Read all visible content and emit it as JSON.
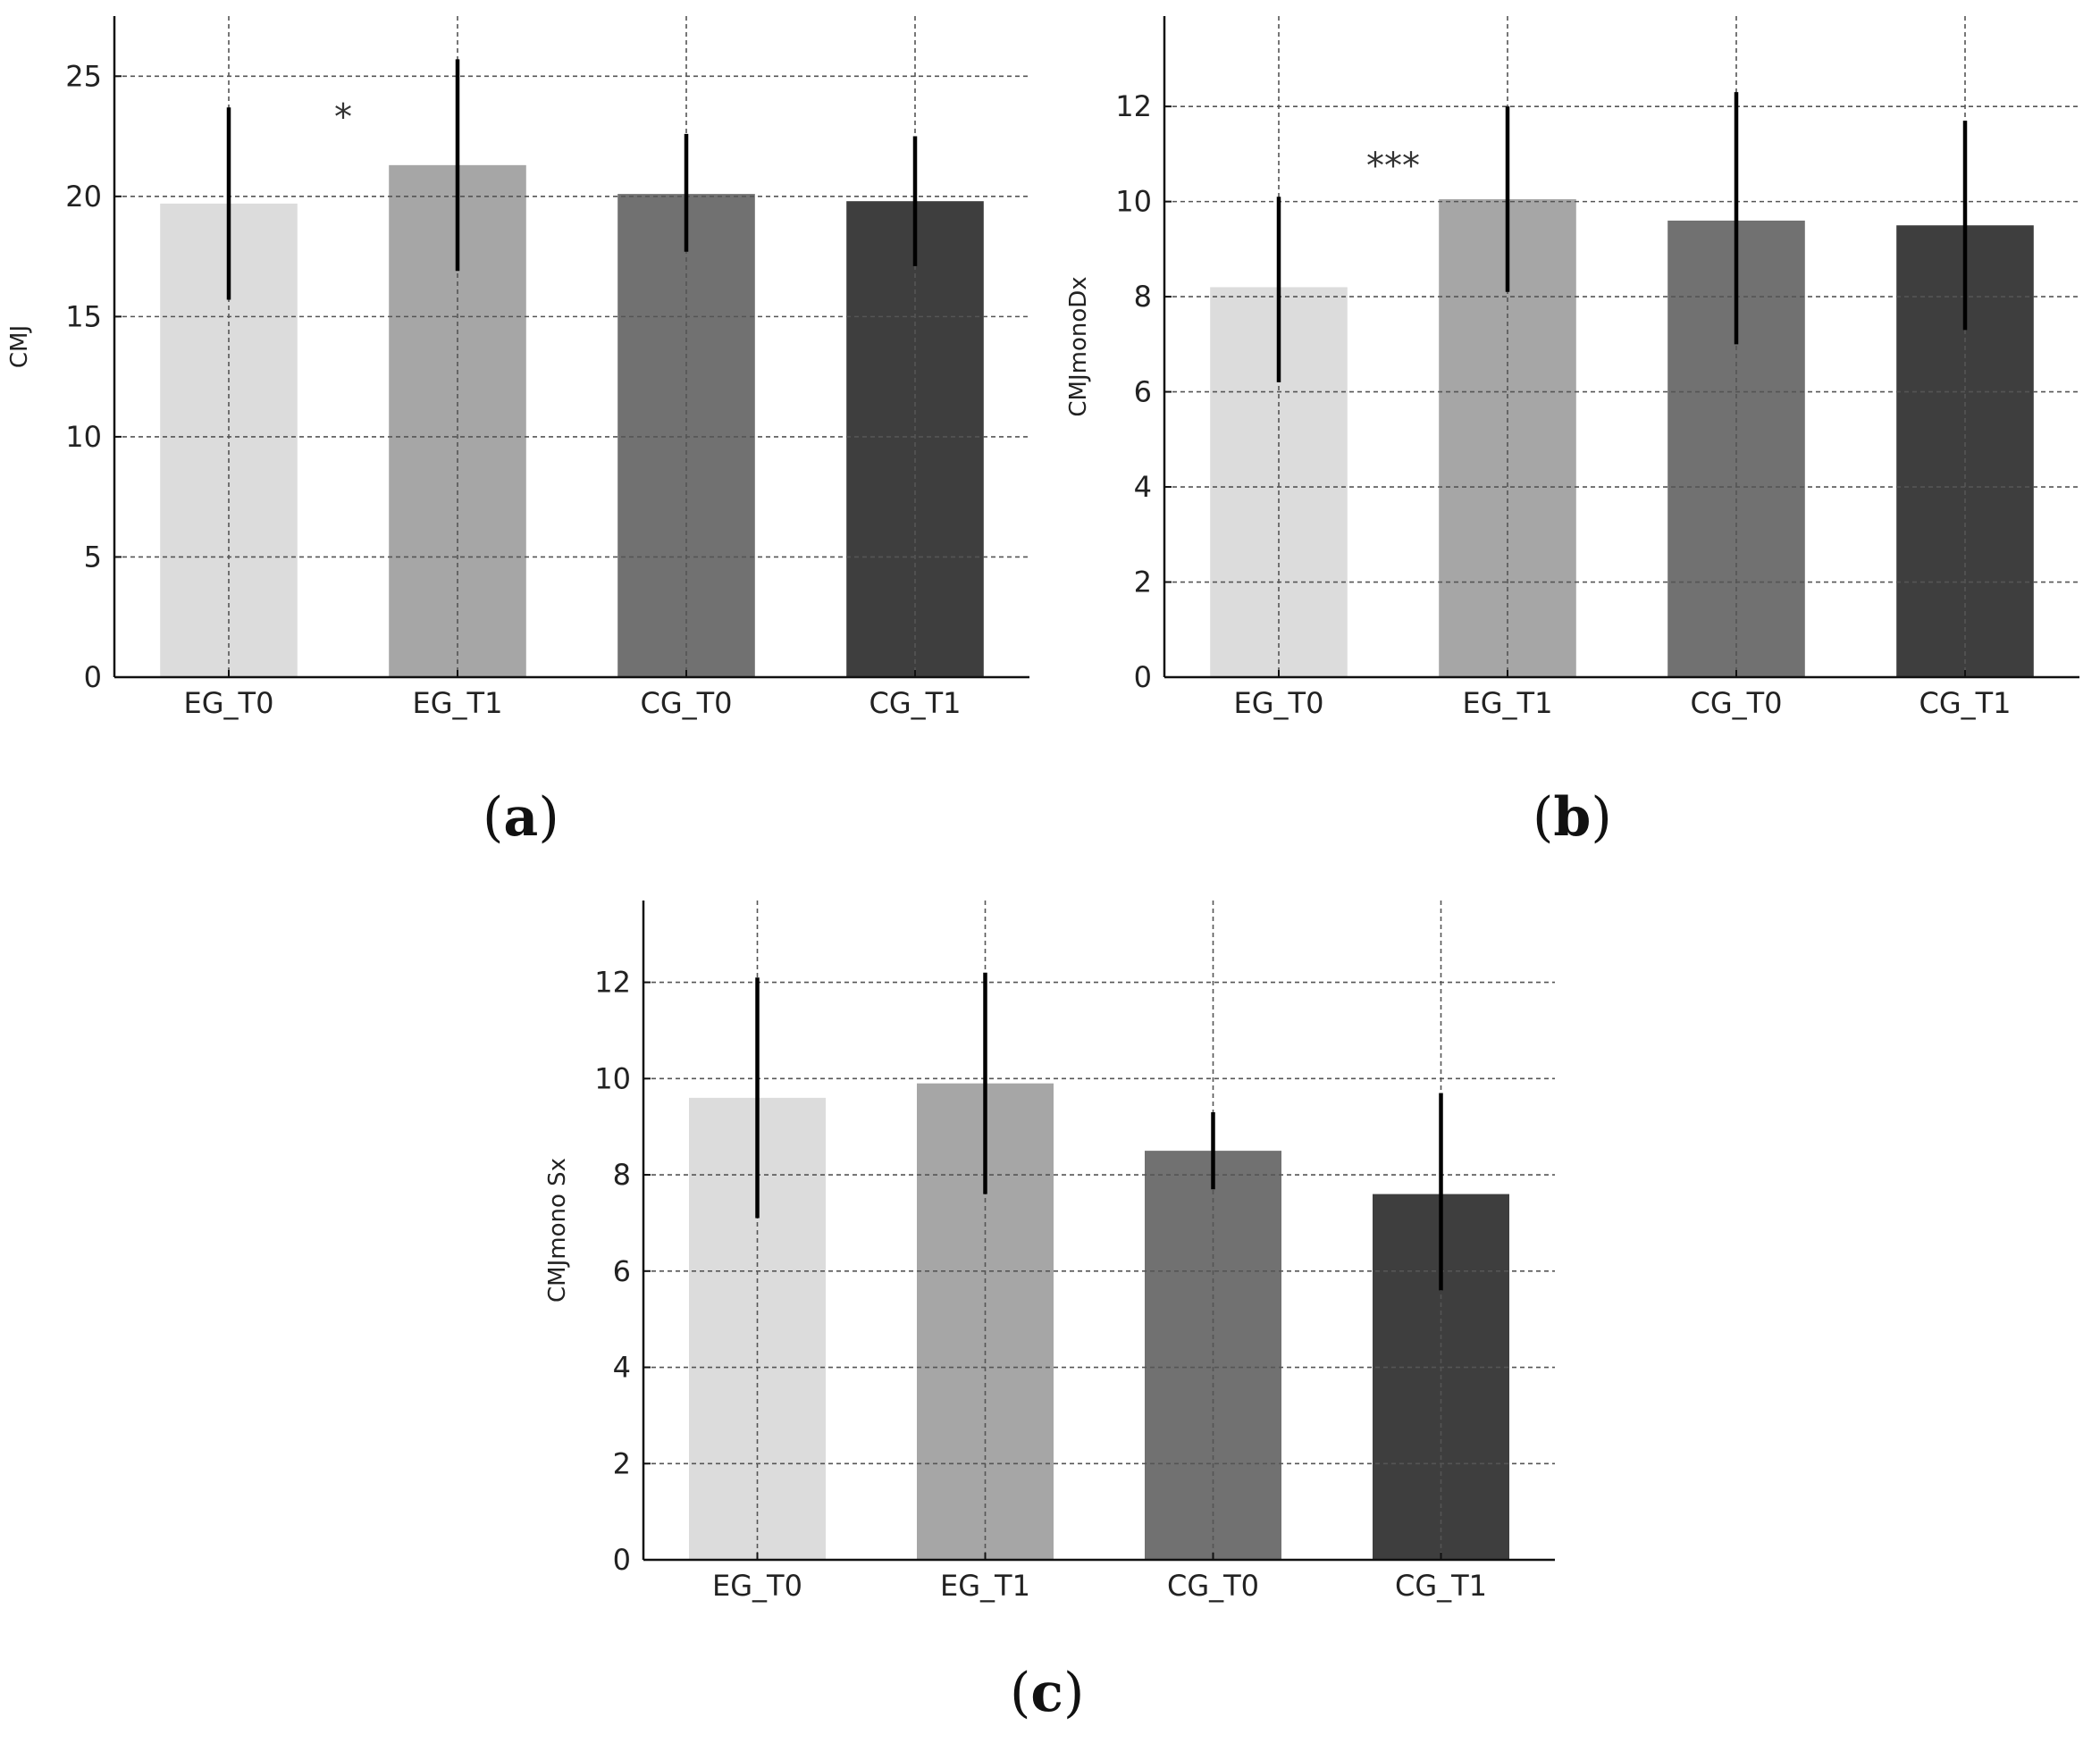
{
  "chart_data": [
    {
      "type": "bar",
      "panel": "(a)",
      "ylabel": "CMJ",
      "categories": [
        "EG_T0",
        "EG_T1",
        "CG_T0",
        "CG_T1"
      ],
      "values": [
        19.7,
        21.3,
        20.1,
        19.8
      ],
      "error_low": [
        15.7,
        16.9,
        17.7,
        17.1
      ],
      "error_high": [
        23.7,
        25.7,
        22.6,
        22.5
      ],
      "colors": [
        "#dcdcdc",
        "#a6a6a6",
        "#717171",
        "#3e3e3e"
      ],
      "yticks": [
        0,
        5,
        10,
        15,
        20,
        25
      ],
      "ytick_labels": [
        "0",
        "5",
        "10",
        "15",
        "20",
        "25"
      ],
      "ylim": [
        0,
        27.5
      ],
      "grid": true,
      "annotations": [
        {
          "text": "*",
          "between": [
            0,
            1
          ],
          "y": 22.8
        }
      ]
    },
    {
      "type": "bar",
      "panel": "(b)",
      "ylabel": "CMJmonoDx",
      "categories": [
        "EG_T0",
        "EG_T1",
        "CG_T0",
        "CG_T1"
      ],
      "values": [
        8.2,
        10.05,
        9.6,
        9.5
      ],
      "error_low": [
        6.2,
        8.1,
        7.0,
        7.3
      ],
      "error_high": [
        10.1,
        12.0,
        12.3,
        11.7
      ],
      "colors": [
        "#dcdcdc",
        "#a6a6a6",
        "#717171",
        "#3e3e3e"
      ],
      "yticks": [
        0,
        2,
        4,
        6,
        8,
        10,
        12
      ],
      "ytick_labels": [
        "0",
        "2",
        "4",
        "6",
        "8",
        "10",
        "12"
      ],
      "ylim": [
        0,
        13.9
      ],
      "grid": true,
      "annotations": [
        {
          "text": "***",
          "between": [
            0,
            1
          ],
          "y": 10.5
        }
      ]
    },
    {
      "type": "bar",
      "panel": "(c)",
      "ylabel": "CMJmono Sx",
      "categories": [
        "EG_T0",
        "EG_T1",
        "CG_T0",
        "CG_T1"
      ],
      "values": [
        9.6,
        9.9,
        8.5,
        7.6
      ],
      "error_low": [
        7.1,
        7.6,
        7.7,
        5.6
      ],
      "error_high": [
        12.1,
        12.2,
        9.3,
        9.7
      ],
      "colors": [
        "#dcdcdc",
        "#a6a6a6",
        "#717171",
        "#3e3e3e"
      ],
      "yticks": [
        0,
        2,
        4,
        6,
        8,
        10,
        12
      ],
      "ytick_labels": [
        "0",
        "2",
        "4",
        "6",
        "8",
        "10",
        "12"
      ],
      "ylim": [
        0,
        13.7
      ],
      "grid": true,
      "annotations": []
    }
  ],
  "captions": {
    "a_label": "a",
    "b_label": "b",
    "c_label": "c"
  }
}
